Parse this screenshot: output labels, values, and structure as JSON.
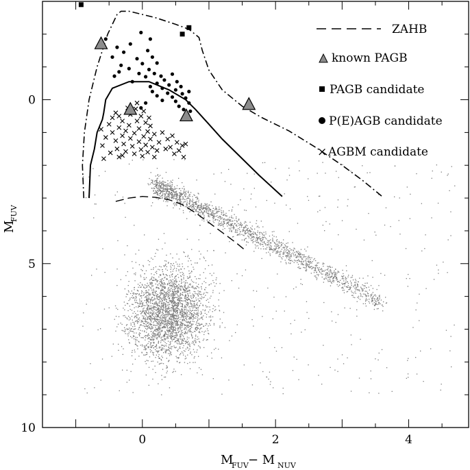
{
  "chart_data": {
    "type": "scatter",
    "title": "",
    "xlim": [
      -1.5,
      4.9
    ],
    "ylim": [
      10,
      -3
    ],
    "y_inverted": true,
    "x_ticks": [
      0,
      2,
      4
    ],
    "x_tick_labels": [
      "0",
      "2",
      "4"
    ],
    "y_ticks": [
      0,
      5,
      10
    ],
    "y_tick_labels": [
      "0",
      "5",
      "10"
    ],
    "xlabel": {
      "main": "M",
      "sub1": "FUV",
      "mid": " − M",
      "sub2": "NUV"
    },
    "ylabel": {
      "main": "M",
      "sub": "FUV"
    },
    "legend_position": "top-right",
    "legend": [
      {
        "key": "zahb",
        "label": "ZAHB",
        "marker": "dash"
      },
      {
        "key": "known_pagb",
        "label": "known PAGB",
        "marker": "triangle"
      },
      {
        "key": "pagb_candidate",
        "label": "PAGB candidate",
        "marker": "square"
      },
      {
        "key": "peagb_candidate",
        "label": "P(E)AGB candidate",
        "marker": "circle"
      },
      {
        "key": "agbm_candidate",
        "label": "AGBM candidate",
        "marker": "cross"
      }
    ],
    "colors": {
      "background_points": "#7a7a7a",
      "triangle_fill": "#8c8c8c",
      "ink": "#000000"
    },
    "known_pagb": [
      {
        "x": -0.62,
        "y": -1.7
      },
      {
        "x": -0.18,
        "y": 0.3
      },
      {
        "x": 0.66,
        "y": 0.5
      },
      {
        "x": 1.6,
        "y": 0.15
      }
    ],
    "pagb_candidate": [
      {
        "x": -0.92,
        "y": -2.9
      },
      {
        "x": 0.6,
        "y": -2.0
      },
      {
        "x": 0.7,
        "y": -2.2
      }
    ],
    "peagb_candidate": [
      {
        "x": -0.55,
        "y": -1.85
      },
      {
        "x": -0.02,
        "y": -2.05
      },
      {
        "x": 0.12,
        "y": -1.85
      },
      {
        "x": -0.18,
        "y": -1.7
      },
      {
        "x": -0.38,
        "y": -1.6
      },
      {
        "x": 0.08,
        "y": -1.5
      },
      {
        "x": -0.28,
        "y": -1.45
      },
      {
        "x": 0.15,
        "y": -1.3
      },
      {
        "x": -0.08,
        "y": -1.25
      },
      {
        "x": -0.45,
        "y": -1.3
      },
      {
        "x": 0.22,
        "y": -1.12
      },
      {
        "x": 0.0,
        "y": -1.1
      },
      {
        "x": -0.32,
        "y": -1.05
      },
      {
        "x": -0.2,
        "y": -0.95
      },
      {
        "x": 0.1,
        "y": -0.92
      },
      {
        "x": -0.35,
        "y": -0.85
      },
      {
        "x": 0.18,
        "y": -0.8
      },
      {
        "x": -0.05,
        "y": -0.8
      },
      {
        "x": 0.45,
        "y": -0.78
      },
      {
        "x": 0.28,
        "y": -0.72
      },
      {
        "x": -0.42,
        "y": -0.72
      },
      {
        "x": 0.05,
        "y": -0.7
      },
      {
        "x": 0.33,
        "y": -0.6
      },
      {
        "x": 0.52,
        "y": -0.55
      },
      {
        "x": -0.15,
        "y": -0.55
      },
      {
        "x": 0.22,
        "y": -0.5
      },
      {
        "x": 0.4,
        "y": -0.45
      },
      {
        "x": 0.58,
        "y": -0.4
      },
      {
        "x": 0.12,
        "y": -0.4
      },
      {
        "x": 0.3,
        "y": -0.35
      },
      {
        "x": 0.5,
        "y": -0.3
      },
      {
        "x": 0.7,
        "y": -0.25
      },
      {
        "x": 0.15,
        "y": -0.25
      },
      {
        "x": 0.38,
        "y": -0.2
      },
      {
        "x": 0.6,
        "y": -0.18
      },
      {
        "x": 0.22,
        "y": -0.12
      },
      {
        "x": 0.45,
        "y": -0.08
      },
      {
        "x": 0.65,
        "y": -0.05
      },
      {
        "x": 0.3,
        "y": 0.02
      },
      {
        "x": 0.5,
        "y": 0.05
      },
      {
        "x": 0.7,
        "y": 0.1
      },
      {
        "x": 0.55,
        "y": 0.2
      },
      {
        "x": 0.62,
        "y": 0.3
      },
      {
        "x": 0.72,
        "y": 0.35
      },
      {
        "x": 0.68,
        "y": 0.45
      },
      {
        "x": 0.66,
        "y": 0.55
      },
      {
        "x": -0.02,
        "y": 0.25
      },
      {
        "x": 0.05,
        "y": 0.1
      }
    ],
    "agbm_candidate": [
      {
        "x": -0.22,
        "y": 0.25
      },
      {
        "x": -0.1,
        "y": 0.28
      },
      {
        "x": 0.02,
        "y": 0.35
      },
      {
        "x": -0.35,
        "y": 0.5
      },
      {
        "x": -0.18,
        "y": 0.45
      },
      {
        "x": -0.02,
        "y": 0.5
      },
      {
        "x": -0.45,
        "y": 0.55
      },
      {
        "x": 0.1,
        "y": 0.55
      },
      {
        "x": -0.3,
        "y": 0.65
      },
      {
        "x": -0.08,
        "y": 0.65
      },
      {
        "x": 0.05,
        "y": 0.7
      },
      {
        "x": -0.5,
        "y": 0.75
      },
      {
        "x": -0.2,
        "y": 0.78
      },
      {
        "x": 0.12,
        "y": 0.8
      },
      {
        "x": -0.35,
        "y": 0.85
      },
      {
        "x": -0.05,
        "y": 0.88
      },
      {
        "x": -0.62,
        "y": 0.9
      },
      {
        "x": -0.25,
        "y": 0.95
      },
      {
        "x": 0.08,
        "y": 0.97
      },
      {
        "x": -0.45,
        "y": 1.0
      },
      {
        "x": -0.12,
        "y": 1.02
      },
      {
        "x": 0.18,
        "y": 1.05
      },
      {
        "x": -0.3,
        "y": 1.1
      },
      {
        "x": 0.02,
        "y": 1.12
      },
      {
        "x": -0.55,
        "y": 1.15
      },
      {
        "x": -0.18,
        "y": 1.18
      },
      {
        "x": 0.12,
        "y": 1.2
      },
      {
        "x": -0.4,
        "y": 1.25
      },
      {
        "x": -0.05,
        "y": 1.28
      },
      {
        "x": 0.25,
        "y": 1.3
      },
      {
        "x": -0.28,
        "y": 1.35
      },
      {
        "x": 0.05,
        "y": 1.38
      },
      {
        "x": -0.6,
        "y": 1.4
      },
      {
        "x": -0.15,
        "y": 1.42
      },
      {
        "x": 0.15,
        "y": 1.45
      },
      {
        "x": -0.38,
        "y": 1.5
      },
      {
        "x": -0.02,
        "y": 1.52
      },
      {
        "x": 0.22,
        "y": 1.55
      },
      {
        "x": -0.25,
        "y": 1.58
      },
      {
        "x": 0.08,
        "y": 1.6
      },
      {
        "x": -0.48,
        "y": 1.62
      },
      {
        "x": -0.12,
        "y": 1.65
      },
      {
        "x": 0.0,
        "y": 1.72
      },
      {
        "x": -0.3,
        "y": 1.7
      },
      {
        "x": 0.3,
        "y": 1.0
      },
      {
        "x": 0.38,
        "y": 1.2
      },
      {
        "x": 0.45,
        "y": 1.1
      },
      {
        "x": 0.52,
        "y": 1.3
      },
      {
        "x": 0.6,
        "y": 1.4
      },
      {
        "x": 0.42,
        "y": 1.45
      },
      {
        "x": 0.55,
        "y": 1.55
      },
      {
        "x": 0.65,
        "y": 1.35
      },
      {
        "x": 0.48,
        "y": 1.65
      },
      {
        "x": 0.35,
        "y": 1.5
      },
      {
        "x": 0.62,
        "y": 1.75
      },
      {
        "x": -0.08,
        "y": 0.1
      },
      {
        "x": -0.4,
        "y": 0.4
      },
      {
        "x": -0.58,
        "y": 1.8
      },
      {
        "x": 0.18,
        "y": 1.75
      },
      {
        "x": -0.35,
        "y": 1.75
      }
    ],
    "zahb_curve": [
      [
        -0.4,
        3.1
      ],
      [
        -0.2,
        3.0
      ],
      [
        0.0,
        2.95
      ],
      [
        0.2,
        2.98
      ],
      [
        0.4,
        3.05
      ],
      [
        0.6,
        3.2
      ],
      [
        0.8,
        3.45
      ],
      [
        1.0,
        3.75
      ],
      [
        1.2,
        4.05
      ],
      [
        1.4,
        4.35
      ],
      [
        1.55,
        4.6
      ]
    ],
    "track_solid": [
      [
        -0.8,
        3.0
      ],
      [
        -0.79,
        2.5
      ],
      [
        -0.78,
        2.0
      ],
      [
        -0.72,
        1.5
      ],
      [
        -0.68,
        1.0
      ],
      [
        -0.6,
        0.6
      ],
      [
        -0.58,
        0.4
      ],
      [
        -0.55,
        0.0
      ],
      [
        -0.45,
        -0.35
      ],
      [
        -0.2,
        -0.55
      ],
      [
        0.1,
        -0.55
      ],
      [
        0.4,
        -0.3
      ],
      [
        0.65,
        0.0
      ],
      [
        0.8,
        0.3
      ],
      [
        1.0,
        0.75
      ],
      [
        1.2,
        1.2
      ],
      [
        1.45,
        1.7
      ],
      [
        1.75,
        2.3
      ],
      [
        2.1,
        2.95
      ]
    ],
    "track_dashdot": [
      [
        -0.88,
        3.0
      ],
      [
        -0.9,
        2.0
      ],
      [
        -0.87,
        1.0
      ],
      [
        -0.8,
        0.0
      ],
      [
        -0.68,
        -1.0
      ],
      [
        -0.52,
        -2.0
      ],
      [
        -0.38,
        -2.6
      ],
      [
        -0.32,
        -2.7
      ],
      [
        -0.2,
        -2.7
      ],
      [
        0.0,
        -2.6
      ],
      [
        0.2,
        -2.5
      ],
      [
        0.5,
        -2.3
      ],
      [
        0.7,
        -2.15
      ],
      [
        0.85,
        -1.9
      ],
      [
        0.9,
        -1.5
      ],
      [
        1.0,
        -0.9
      ],
      [
        1.2,
        -0.3
      ],
      [
        1.5,
        0.2
      ],
      [
        1.8,
        0.55
      ],
      [
        2.2,
        0.95
      ],
      [
        2.6,
        1.45
      ],
      [
        3.0,
        2.0
      ],
      [
        3.3,
        2.45
      ],
      [
        3.6,
        2.95
      ]
    ]
  }
}
